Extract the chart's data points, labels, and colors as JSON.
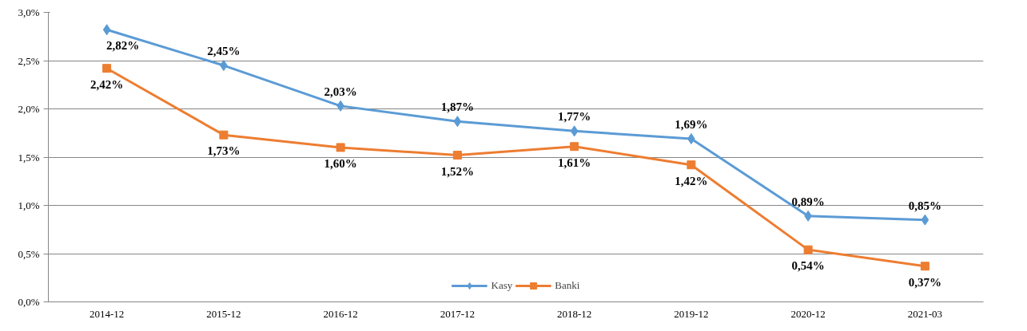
{
  "chart_data": {
    "type": "line",
    "categories": [
      "2014-12",
      "2015-12",
      "2016-12",
      "2017-12",
      "2018-12",
      "2019-12",
      "2020-12",
      "2021-03"
    ],
    "series": [
      {
        "name": "Kasy",
        "color": "#5b9bd5",
        "marker": "diamond",
        "values": [
          2.82,
          2.45,
          2.03,
          1.87,
          1.77,
          1.69,
          0.89,
          0.85
        ],
        "value_labels": [
          "2,82%",
          "2,45%",
          "2,03%",
          "1,87%",
          "1,77%",
          "1,69%",
          "0,89%",
          "0,85%"
        ]
      },
      {
        "name": "Banki",
        "color": "#ed7d31",
        "marker": "square",
        "values": [
          2.42,
          1.73,
          1.6,
          1.52,
          1.61,
          1.42,
          0.54,
          0.37
        ],
        "value_labels": [
          "2,42%",
          "1,73%",
          "1,60%",
          "1,52%",
          "1,61%",
          "1,42%",
          "0,54%",
          "0,37%"
        ]
      }
    ],
    "ylim": [
      0,
      3.0
    ],
    "yticks": [
      {
        "value": 0,
        "label": "0,0%"
      },
      {
        "value": 0.5,
        "label": "0,5%"
      },
      {
        "value": 1.0,
        "label": "1,0%"
      },
      {
        "value": 1.5,
        "label": "1,5%"
      },
      {
        "value": 2.0,
        "label": "2,0%"
      },
      {
        "value": 2.5,
        "label": "2,5%"
      },
      {
        "value": 3.0,
        "label": "3,0%"
      }
    ],
    "grid": "y",
    "legend": "bottom",
    "line_style": "solid"
  }
}
